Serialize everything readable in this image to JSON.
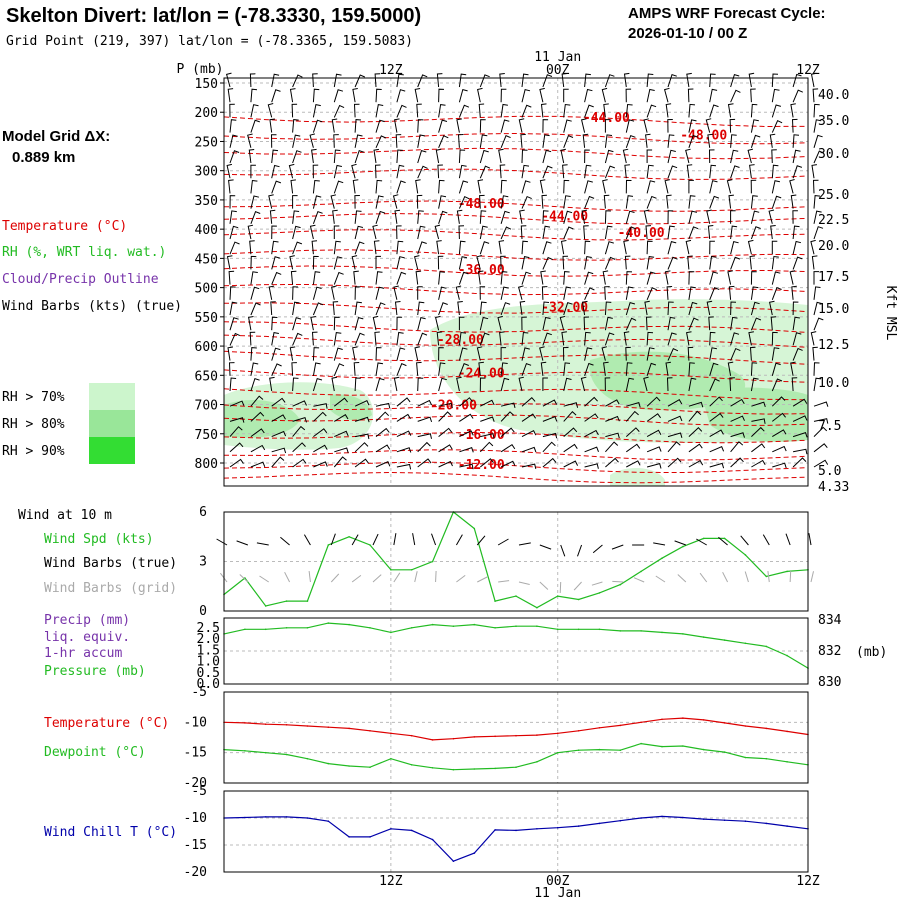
{
  "header": {
    "title": "Skelton Divert:  lat/lon = (-78.3330, 159.5000)",
    "subtitle": "Grid Point (219, 397) lat/lon = (-78.3365, 159.5083)",
    "cycle_label": "AMPS WRF Forecast Cycle:",
    "cycle_value": "2026-01-10 / 00  Z"
  },
  "sidebar": {
    "model_grid_label": "Model Grid ΔX:",
    "model_grid_value": "0.889 km",
    "temperature_label": "Temperature (°C)",
    "rh_label": "RH (%, WRT liq. wat.)",
    "cloud_label": "Cloud/Precip Outline",
    "wind_barbs_label": "Wind Barbs (kts) (true)",
    "rh_legend": [
      {
        "label": "RH > 70%",
        "color": "#ccf5cc"
      },
      {
        "label": "RH > 80%",
        "color": "#99e699"
      },
      {
        "label": "RH > 90%",
        "color": "#33dd33"
      }
    ]
  },
  "colors": {
    "temperature": "#dd0000",
    "rh": "#22bb22",
    "cloud": "#7733aa",
    "windchill": "#0000aa",
    "grid_barb": "#aaaaaa"
  },
  "time_axis": {
    "date_label_top": "11 Jan",
    "date_label_bottom": "11 Jan",
    "ticks": [
      "12Z",
      "00Z",
      "12Z"
    ]
  },
  "chart_data": [
    {
      "type": "line",
      "name": "cross-section",
      "ylabel": "P (mb)",
      "pressure_ticks": [
        150,
        200,
        250,
        300,
        350,
        400,
        450,
        500,
        550,
        600,
        650,
        700,
        750,
        800
      ],
      "height_label": "Kft MSL",
      "height_ticks": [
        "40.0",
        "35.0",
        "30.0",
        "25.0",
        "22.5",
        "20.0",
        "17.5",
        "15.0",
        "12.5",
        "10.0",
        "7.5",
        "5.0",
        "4.33"
      ],
      "isotherm_labels": [
        {
          "text": "-44.00",
          "hour": 27.5,
          "p": 208
        },
        {
          "text": "-48.00",
          "hour": 34.5,
          "p": 238
        },
        {
          "text": "-48.00",
          "hour": 18.5,
          "p": 355
        },
        {
          "text": "-44.00",
          "hour": 24.5,
          "p": 377
        },
        {
          "text": "-40.00",
          "hour": 30,
          "p": 405
        },
        {
          "text": "-36.00",
          "hour": 18.5,
          "p": 468
        },
        {
          "text": "-32.00",
          "hour": 24.5,
          "p": 532
        },
        {
          "text": "-28.00",
          "hour": 17,
          "p": 588
        },
        {
          "text": "-24.00",
          "hour": 18.5,
          "p": 645
        },
        {
          "text": "-20.00",
          "hour": 16.5,
          "p": 700
        },
        {
          "text": "-16.00",
          "hour": 18.5,
          "p": 750
        },
        {
          "text": "-12.00",
          "hour": 18.5,
          "p": 802
        }
      ]
    },
    {
      "type": "line",
      "name": "wind-10m",
      "title": "Wind at 10 m",
      "legend": [
        "Wind Spd (kts)",
        "Wind Barbs (true)",
        "Wind Barbs (grid)"
      ],
      "y_ticks": [
        "6",
        "3",
        "0"
      ],
      "ylim": [
        0,
        6
      ],
      "hours": [
        0,
        1.5,
        3,
        4.5,
        6,
        7.5,
        9,
        10.5,
        12,
        13.5,
        15,
        16.5,
        18,
        19.5,
        21,
        22.5,
        24,
        25.5,
        27,
        28.5,
        30,
        31.5,
        33,
        34.5,
        36,
        37.5,
        39,
        40.5,
        42
      ],
      "wind_speed": [
        1.0,
        2.0,
        0.3,
        0.6,
        0.6,
        4.0,
        4.5,
        4.0,
        2.5,
        2.5,
        3.0,
        6.0,
        5.0,
        0.6,
        0.9,
        0.2,
        0.9,
        0.7,
        1.1,
        1.6,
        2.4,
        3.2,
        3.9,
        4.4,
        4.4,
        3.4,
        2.1,
        2.4,
        2.5
      ],
      "wind_dir": [
        300,
        290,
        280,
        310,
        330,
        20,
        30,
        25,
        10,
        350,
        340,
        30,
        40,
        60,
        80,
        110,
        160,
        200,
        230,
        250,
        270,
        280,
        290,
        300,
        310,
        320,
        330,
        340,
        350
      ]
    },
    {
      "type": "line",
      "name": "precip-pressure",
      "legend": [
        "Precip (mm)",
        "liq. equiv.",
        "1-hr accum",
        "Pressure (mb)"
      ],
      "y_ticks_left": [
        "2.5",
        "2.0",
        "1.5",
        "1.0",
        "0.5",
        "0.0"
      ],
      "y_ticks_right": [
        "834",
        "832",
        "830"
      ],
      "right_unit": "(mb)",
      "ylim_right": [
        830,
        834
      ],
      "hours": [
        0,
        1.5,
        3,
        4.5,
        6,
        7.5,
        9,
        10.5,
        12,
        13.5,
        15,
        16.5,
        18,
        19.5,
        21,
        22.5,
        24,
        25.5,
        27,
        28.5,
        30,
        31.5,
        33,
        34.5,
        36,
        37.5,
        39,
        40.5,
        42
      ],
      "pressure": [
        833.1,
        833.4,
        833.4,
        833.5,
        833.5,
        833.8,
        833.7,
        833.5,
        833.2,
        833.5,
        833.7,
        833.6,
        833.7,
        833.5,
        833.6,
        833.6,
        833.4,
        833.4,
        833.4,
        833.3,
        833.3,
        833.2,
        833.1,
        832.9,
        832.7,
        832.5,
        832.3,
        831.7,
        830.9
      ]
    },
    {
      "type": "line",
      "name": "temperature-dewpoint",
      "legend": [
        "Temperature (°C)",
        "Dewpoint (°C)"
      ],
      "y_ticks": [
        "-5",
        "-10",
        "-15",
        "-20"
      ],
      "ylim": [
        -20,
        -5
      ],
      "hours": [
        0,
        1.5,
        3,
        4.5,
        6,
        7.5,
        9,
        10.5,
        12,
        13.5,
        15,
        16.5,
        18,
        19.5,
        21,
        22.5,
        24,
        25.5,
        27,
        28.5,
        30,
        31.5,
        33,
        34.5,
        36,
        37.5,
        39,
        40.5,
        42
      ],
      "temperature": [
        -10.0,
        -10.1,
        -10.3,
        -10.4,
        -10.6,
        -10.8,
        -11.0,
        -11.4,
        -11.8,
        -12.2,
        -12.9,
        -12.7,
        -12.4,
        -12.3,
        -12.2,
        -12.1,
        -11.8,
        -11.4,
        -10.9,
        -10.5,
        -10.0,
        -9.5,
        -9.3,
        -9.6,
        -10.1,
        -10.6,
        -11.0,
        -11.5,
        -12.0
      ],
      "dewpoint": [
        -14.5,
        -14.7,
        -15.0,
        -15.3,
        -16.0,
        -16.8,
        -17.2,
        -17.4,
        -16.0,
        -17.0,
        -17.5,
        -17.8,
        -17.7,
        -17.6,
        -17.4,
        -16.5,
        -15.0,
        -14.6,
        -14.5,
        -14.6,
        -13.5,
        -14.0,
        -13.9,
        -14.5,
        -14.9,
        -15.8,
        -16.0,
        -16.5,
        -17.0
      ]
    },
    {
      "type": "line",
      "name": "wind-chill",
      "legend": [
        "Wind Chill T (°C)"
      ],
      "y_ticks": [
        "-5",
        "-10",
        "-15",
        "-20"
      ],
      "ylim": [
        -20,
        -5
      ],
      "hours": [
        0,
        1.5,
        3,
        4.5,
        6,
        7.5,
        9,
        10.5,
        12,
        13.5,
        15,
        16.5,
        18,
        19.5,
        21,
        22.5,
        24,
        25.5,
        27,
        28.5,
        30,
        31.5,
        33,
        34.5,
        36,
        37.5,
        39,
        40.5,
        42
      ],
      "windchill": [
        -10.0,
        -9.9,
        -9.8,
        -9.8,
        -10.0,
        -10.6,
        -13.5,
        -13.5,
        -12.0,
        -12.3,
        -14.0,
        -18.0,
        -16.5,
        -12.2,
        -12.3,
        -12.0,
        -11.8,
        -11.5,
        -11.0,
        -10.5,
        -10.0,
        -9.7,
        -9.9,
        -10.2,
        -10.4,
        -10.6,
        -11.0,
        -11.5,
        -12.0
      ]
    }
  ]
}
